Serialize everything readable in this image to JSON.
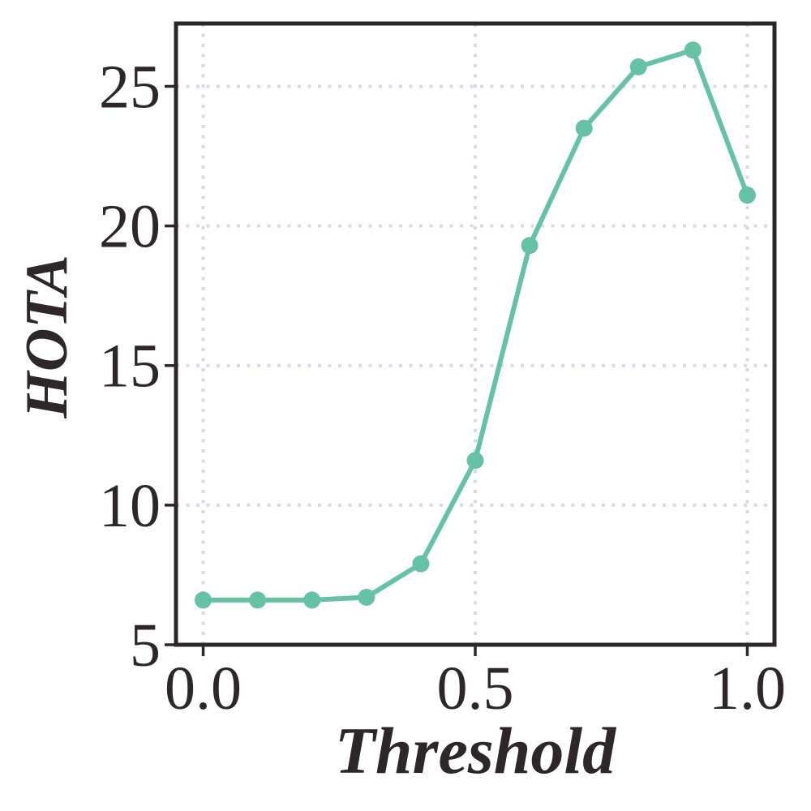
{
  "chart_data": {
    "type": "line",
    "title": "",
    "xlabel": "Threshold",
    "ylabel": "HOTA",
    "x": [
      0.0,
      0.1,
      0.2,
      0.3,
      0.4,
      0.5,
      0.6,
      0.7,
      0.8,
      0.9,
      1.0
    ],
    "series": [
      {
        "name": "HOTA",
        "values": [
          6.6,
          6.6,
          6.6,
          6.7,
          7.9,
          11.6,
          19.3,
          23.5,
          25.7,
          26.3,
          21.1
        ]
      }
    ],
    "x_ticks": {
      "values": [
        0.0,
        0.5,
        1.0
      ],
      "labels": [
        "0.0",
        "0.5",
        "1.0"
      ]
    },
    "y_ticks": {
      "values": [
        5,
        10,
        15,
        20,
        25
      ],
      "labels": [
        "5",
        "10",
        "15",
        "20",
        "25"
      ]
    },
    "xlim": [
      -0.05,
      1.05
    ],
    "ylim": [
      5,
      27.25
    ],
    "grid": true,
    "grid_style": "dotted",
    "legend": "none",
    "marker": "circle",
    "colors": {
      "line": "#66c2a5",
      "marker": "#66c2a5",
      "grid": "#d3dbe9",
      "axis": "#2d2727",
      "text": "#2d2727",
      "background": "#ffffff"
    }
  }
}
